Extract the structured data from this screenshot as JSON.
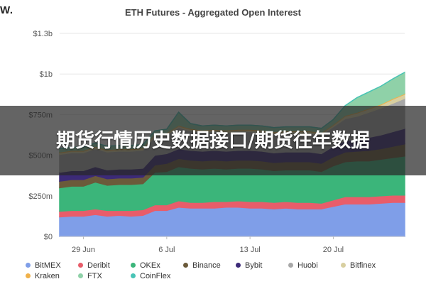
{
  "brand": "W.",
  "banner": "期货行情历史数据接口/期货往年数据",
  "chart_data": {
    "type": "area",
    "stacked": true,
    "title": "ETH Futures - Aggregated Open Interest",
    "xlabel": "",
    "ylabel": "",
    "x_ticks": [
      "29 Jun",
      "6 Jul",
      "13 Jul",
      "20 Jul"
    ],
    "x_tick_indices": [
      2,
      9,
      16,
      23
    ],
    "y_ticks": [
      "$0",
      "$250m",
      "$500m",
      "$750m",
      "$1b",
      "$1.3b"
    ],
    "y_tick_values": [
      0,
      250,
      500,
      750,
      1000,
      1250
    ],
    "ylim": [
      0,
      1250
    ],
    "y_unit": "m USD",
    "grid": true,
    "legend_position": "bottom",
    "x": [
      "27 Jun",
      "28 Jun",
      "29 Jun",
      "30 Jun",
      "1 Jul",
      "2 Jul",
      "3 Jul",
      "4 Jul",
      "5 Jul",
      "6 Jul",
      "7 Jul",
      "8 Jul",
      "9 Jul",
      "10 Jul",
      "11 Jul",
      "12 Jul",
      "13 Jul",
      "14 Jul",
      "15 Jul",
      "16 Jul",
      "17 Jul",
      "18 Jul",
      "19 Jul",
      "20 Jul",
      "21 Jul",
      "22 Jul",
      "23 Jul",
      "24 Jul",
      "25 Jul",
      "26 Jul"
    ],
    "series": [
      {
        "name": "BitMEX",
        "color": "#7f9ee8",
        "values": [
          120,
          125,
          125,
          135,
          125,
          130,
          125,
          130,
          160,
          160,
          180,
          175,
          175,
          175,
          180,
          180,
          175,
          175,
          170,
          175,
          170,
          170,
          170,
          185,
          200,
          200,
          200,
          205,
          210,
          210
        ]
      },
      {
        "name": "Deribit",
        "color": "#e85d6a",
        "values": [
          35,
          35,
          35,
          35,
          35,
          30,
          35,
          35,
          35,
          35,
          40,
          35,
          35,
          40,
          35,
          40,
          40,
          40,
          40,
          40,
          40,
          40,
          35,
          40,
          45,
          45,
          45,
          45,
          45,
          45
        ]
      },
      {
        "name": "OKEx",
        "color": "#3bb57a",
        "values": [
          145,
          150,
          150,
          165,
          155,
          160,
          160,
          160,
          200,
          205,
          210,
          210,
          205,
          205,
          200,
          200,
          205,
          200,
          195,
          195,
          200,
          200,
          195,
          210,
          215,
          220,
          220,
          225,
          230,
          240
        ]
      },
      {
        "name": "Binance",
        "color": "#6b5a3a",
        "values": [
          40,
          40,
          40,
          40,
          40,
          40,
          40,
          40,
          45,
          50,
          50,
          50,
          50,
          50,
          50,
          50,
          50,
          50,
          50,
          50,
          50,
          50,
          50,
          55,
          60,
          60,
          65,
          65,
          70,
          75
        ]
      },
      {
        "name": "Bybit",
        "color": "#3c2a78",
        "values": [
          55,
          55,
          55,
          55,
          55,
          55,
          55,
          55,
          60,
          60,
          60,
          60,
          60,
          60,
          60,
          60,
          60,
          60,
          60,
          60,
          60,
          60,
          60,
          65,
          70,
          75,
          80,
          85,
          90,
          95
        ]
      },
      {
        "name": "Huobi",
        "color": "#a8a8a8",
        "values": [
          110,
          110,
          110,
          110,
          110,
          110,
          110,
          110,
          115,
          115,
          130,
          120,
          115,
          115,
          115,
          115,
          115,
          115,
          115,
          115,
          115,
          115,
          115,
          120,
          135,
          140,
          155,
          165,
          175,
          185
        ]
      },
      {
        "name": "Bitfinex",
        "color": "#d8cfa0",
        "values": [
          10,
          10,
          10,
          10,
          10,
          10,
          10,
          10,
          10,
          10,
          10,
          10,
          10,
          10,
          10,
          10,
          10,
          10,
          10,
          10,
          10,
          10,
          10,
          10,
          15,
          20,
          20,
          20,
          25,
          25
        ]
      },
      {
        "name": "Kraken",
        "color": "#f0b14a",
        "values": [
          5,
          5,
          5,
          5,
          5,
          5,
          5,
          5,
          5,
          5,
          5,
          5,
          5,
          5,
          5,
          5,
          5,
          5,
          5,
          5,
          5,
          5,
          5,
          5,
          5,
          5,
          5,
          5,
          5,
          5
        ]
      },
      {
        "name": "FTX",
        "color": "#8fd1a8",
        "values": [
          20,
          20,
          20,
          20,
          20,
          20,
          20,
          20,
          20,
          20,
          80,
          30,
          25,
          25,
          25,
          25,
          25,
          25,
          25,
          25,
          25,
          25,
          25,
          30,
          60,
          90,
          100,
          110,
          120,
          130
        ]
      },
      {
        "name": "CoinFlex",
        "color": "#48c4b6",
        "values": [
          0,
          0,
          0,
          0,
          0,
          0,
          0,
          0,
          0,
          0,
          0,
          0,
          0,
          0,
          0,
          0,
          0,
          0,
          0,
          0,
          0,
          0,
          0,
          0,
          0,
          0,
          0,
          0,
          0,
          0
        ]
      }
    ]
  }
}
